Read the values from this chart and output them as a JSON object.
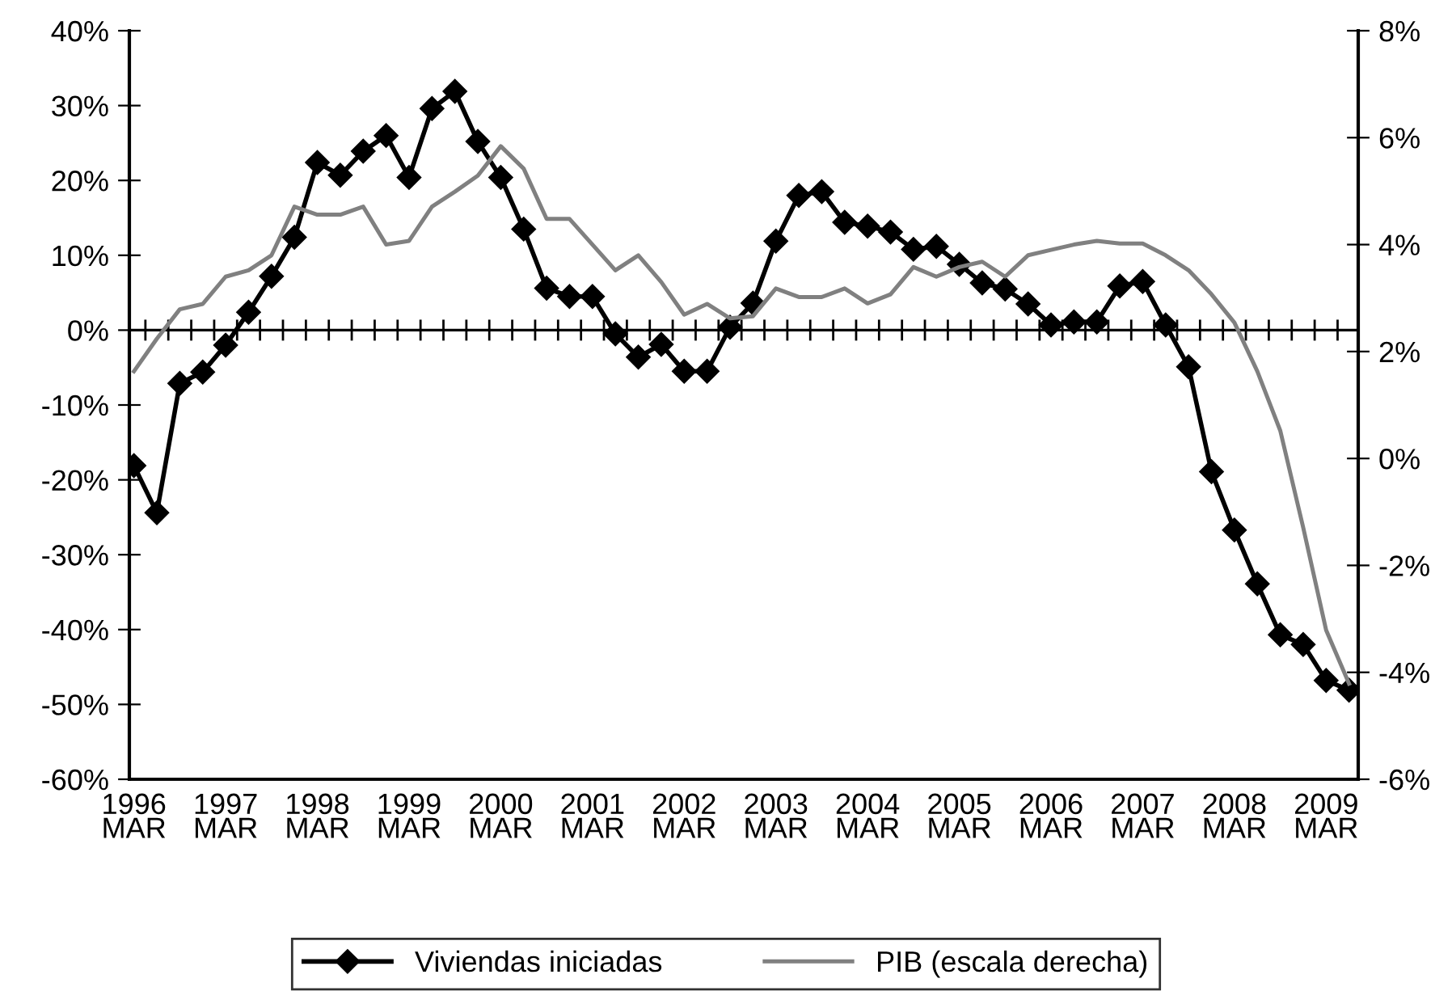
{
  "chart_data": {
    "type": "line",
    "categories": [
      "1996\nMAR",
      null,
      null,
      null,
      "1997\nMAR",
      null,
      null,
      null,
      "1998\nMAR",
      null,
      null,
      null,
      "1999\nMAR",
      null,
      null,
      null,
      "2000\nMAR",
      null,
      null,
      null,
      "2001\nMAR",
      null,
      null,
      null,
      "2002\nMAR",
      null,
      null,
      null,
      "2003\nMAR",
      null,
      null,
      null,
      "2004\nMAR",
      null,
      null,
      null,
      "2005\nMAR",
      null,
      null,
      null,
      "2006\nMAR",
      null,
      null,
      null,
      "2007\nMAR",
      null,
      null,
      null,
      "2008\nMAR",
      null,
      null,
      null,
      "2009\nMAR",
      null
    ],
    "series": [
      {
        "name": "Viviendas iniciadas",
        "color": "#000000",
        "marker": "diamond",
        "values": [
          -18.1,
          -24.4,
          -7.1,
          -5.6,
          -2.0,
          2.4,
          7.2,
          12.4,
          22.4,
          20.7,
          23.9,
          26.0,
          20.4,
          29.6,
          31.9,
          25.2,
          20.4,
          13.5,
          5.6,
          4.5,
          4.5,
          -0.5,
          -3.6,
          -1.9,
          -5.5,
          -5.5,
          0.4,
          3.6,
          11.9,
          18.0,
          18.5,
          14.4,
          13.9,
          13.1,
          10.8,
          11.2,
          8.8,
          6.3,
          5.5,
          3.5,
          0.7,
          1.1,
          1.1,
          5.9,
          6.5,
          0.7,
          -4.9,
          -18.9,
          -26.7,
          -33.9,
          -40.7,
          -42.0,
          -46.8,
          -48.1
        ]
      },
      {
        "name": "PIB (escala derecha)",
        "color": "#808080",
        "axis": "y2",
        "marker": "none",
        "values": [
          1.63,
          2.24,
          2.79,
          2.89,
          3.4,
          3.52,
          3.8,
          4.71,
          4.56,
          4.56,
          4.71,
          4.0,
          4.07,
          4.71,
          4.99,
          5.29,
          5.84,
          5.42,
          4.48,
          4.48,
          4.0,
          3.52,
          3.8,
          3.3,
          2.69,
          2.89,
          2.62,
          2.66,
          3.18,
          3.02,
          3.02,
          3.18,
          2.9,
          3.07,
          3.58,
          3.4,
          3.58,
          3.68,
          3.4,
          3.8,
          3.9,
          4.0,
          4.07,
          4.02,
          4.02,
          3.8,
          3.52,
          3.07,
          2.54,
          1.63,
          0.52,
          -1.29,
          -3.21,
          -4.21
        ]
      }
    ],
    "ylim": [
      -60,
      40
    ],
    "yticks": [
      {
        "value": -60,
        "label": "-60%"
      },
      {
        "value": -50,
        "label": "-50%"
      },
      {
        "value": -40,
        "label": "-40%"
      },
      {
        "value": -30,
        "label": "-30%"
      },
      {
        "value": -20,
        "label": "-20%"
      },
      {
        "value": -10,
        "label": "-10%"
      },
      {
        "value": 0,
        "label": "0%"
      },
      {
        "value": 10,
        "label": "10%"
      },
      {
        "value": 20,
        "label": "20%"
      },
      {
        "value": 30,
        "label": "30%"
      },
      {
        "value": 40,
        "label": "40%"
      }
    ],
    "y2lim": [
      -6,
      8
    ],
    "y2ticks": [
      {
        "value": -6,
        "label": "-6%"
      },
      {
        "value": -4,
        "label": "-4%"
      },
      {
        "value": -2,
        "label": "-2%"
      },
      {
        "value": 0,
        "label": "0%"
      },
      {
        "value": 2,
        "label": "2%"
      },
      {
        "value": 4,
        "label": "4%"
      },
      {
        "value": 6,
        "label": "6%"
      },
      {
        "value": 8,
        "label": "8%"
      }
    ],
    "grid": false,
    "ref_lines": [
      {
        "axis": "y",
        "value": 0,
        "label": null,
        "color": "#000000",
        "line_style": "solid"
      }
    ],
    "legend": "bottom",
    "line_style": "solid"
  }
}
